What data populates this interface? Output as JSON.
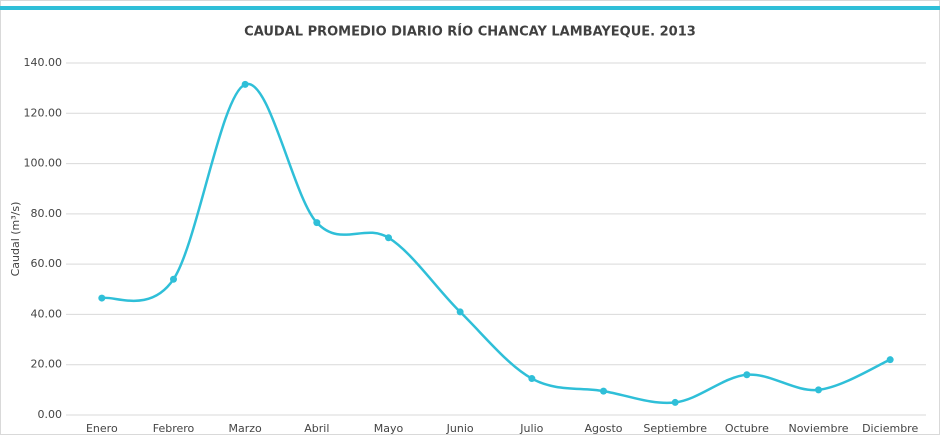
{
  "chart_data": {
    "type": "line",
    "title": "CAUDAL PROMEDIO DIARIO RÍO  CHANCAY LAMBAYEQUE. 2013",
    "y_label": "Caudal (m³/s)",
    "categories": [
      "Enero",
      "Febrero",
      "Marzo",
      "Abril",
      "Mayo",
      "Junio",
      "Julio",
      "Agosto",
      "Septiembre",
      "Octubre",
      "Noviembre",
      "Diciembre"
    ],
    "series": [
      {
        "name": "Caudal",
        "color": "#2fbfd8",
        "values": [
          46.5,
          54,
          131.5,
          76.5,
          70.5,
          41,
          14.5,
          9.5,
          5,
          16,
          10,
          22
        ]
      }
    ],
    "ylim": [
      0,
      140
    ],
    "yticks": [
      {
        "value": 0,
        "label": "0.00"
      },
      {
        "value": 20,
        "label": "20.00"
      },
      {
        "value": 40,
        "label": "40.00"
      },
      {
        "value": 60,
        "label": "60.00"
      },
      {
        "value": 80,
        "label": "80.00"
      },
      {
        "value": 100,
        "label": "100.00"
      },
      {
        "value": 120,
        "label": "120.00"
      },
      {
        "value": 140,
        "label": "140.00"
      }
    ],
    "grid": true,
    "smooth": true
  }
}
